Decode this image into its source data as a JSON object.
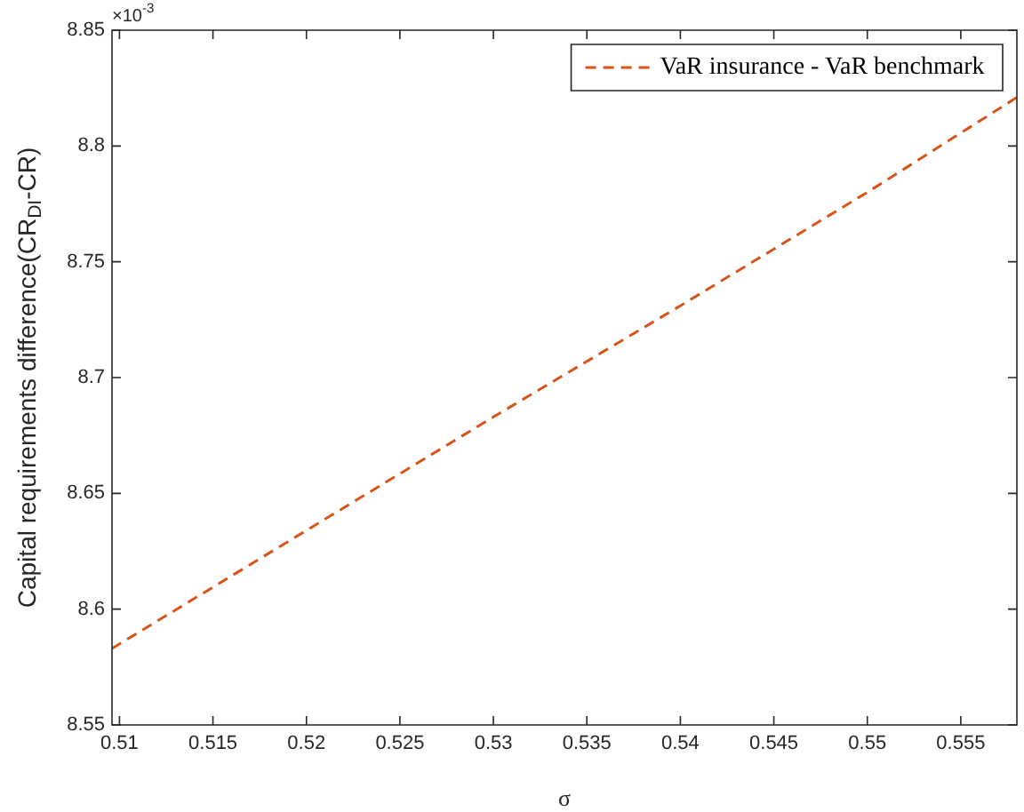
{
  "chart_data": {
    "type": "line",
    "xlabel": "σ",
    "ylabel": "Capital requirements difference(CR$_{DI}$-CR)",
    "x": [
      0.5096,
      0.52,
      0.53,
      0.54,
      0.55,
      0.558
    ],
    "series": [
      {
        "name": "VaR insurance - VaR benchmark",
        "color": "#d95319",
        "values": [
          8.583,
          8.634,
          8.683,
          8.731,
          8.78,
          8.821
        ],
        "line_style": "dashed"
      }
    ],
    "xlim": [
      0.5096,
      0.558
    ],
    "xticks": [
      0.51,
      0.515,
      0.52,
      0.525,
      0.53,
      0.535,
      0.54,
      0.545,
      0.55,
      0.555
    ],
    "ylim": [
      8.55,
      8.85
    ],
    "yticks": [
      8.55,
      8.6,
      8.65,
      8.7,
      8.75,
      8.8,
      8.85
    ],
    "annotations": [
      "×10$^{-3}$"
    ],
    "grid": false,
    "legend": "top right",
    "marker": "none"
  }
}
